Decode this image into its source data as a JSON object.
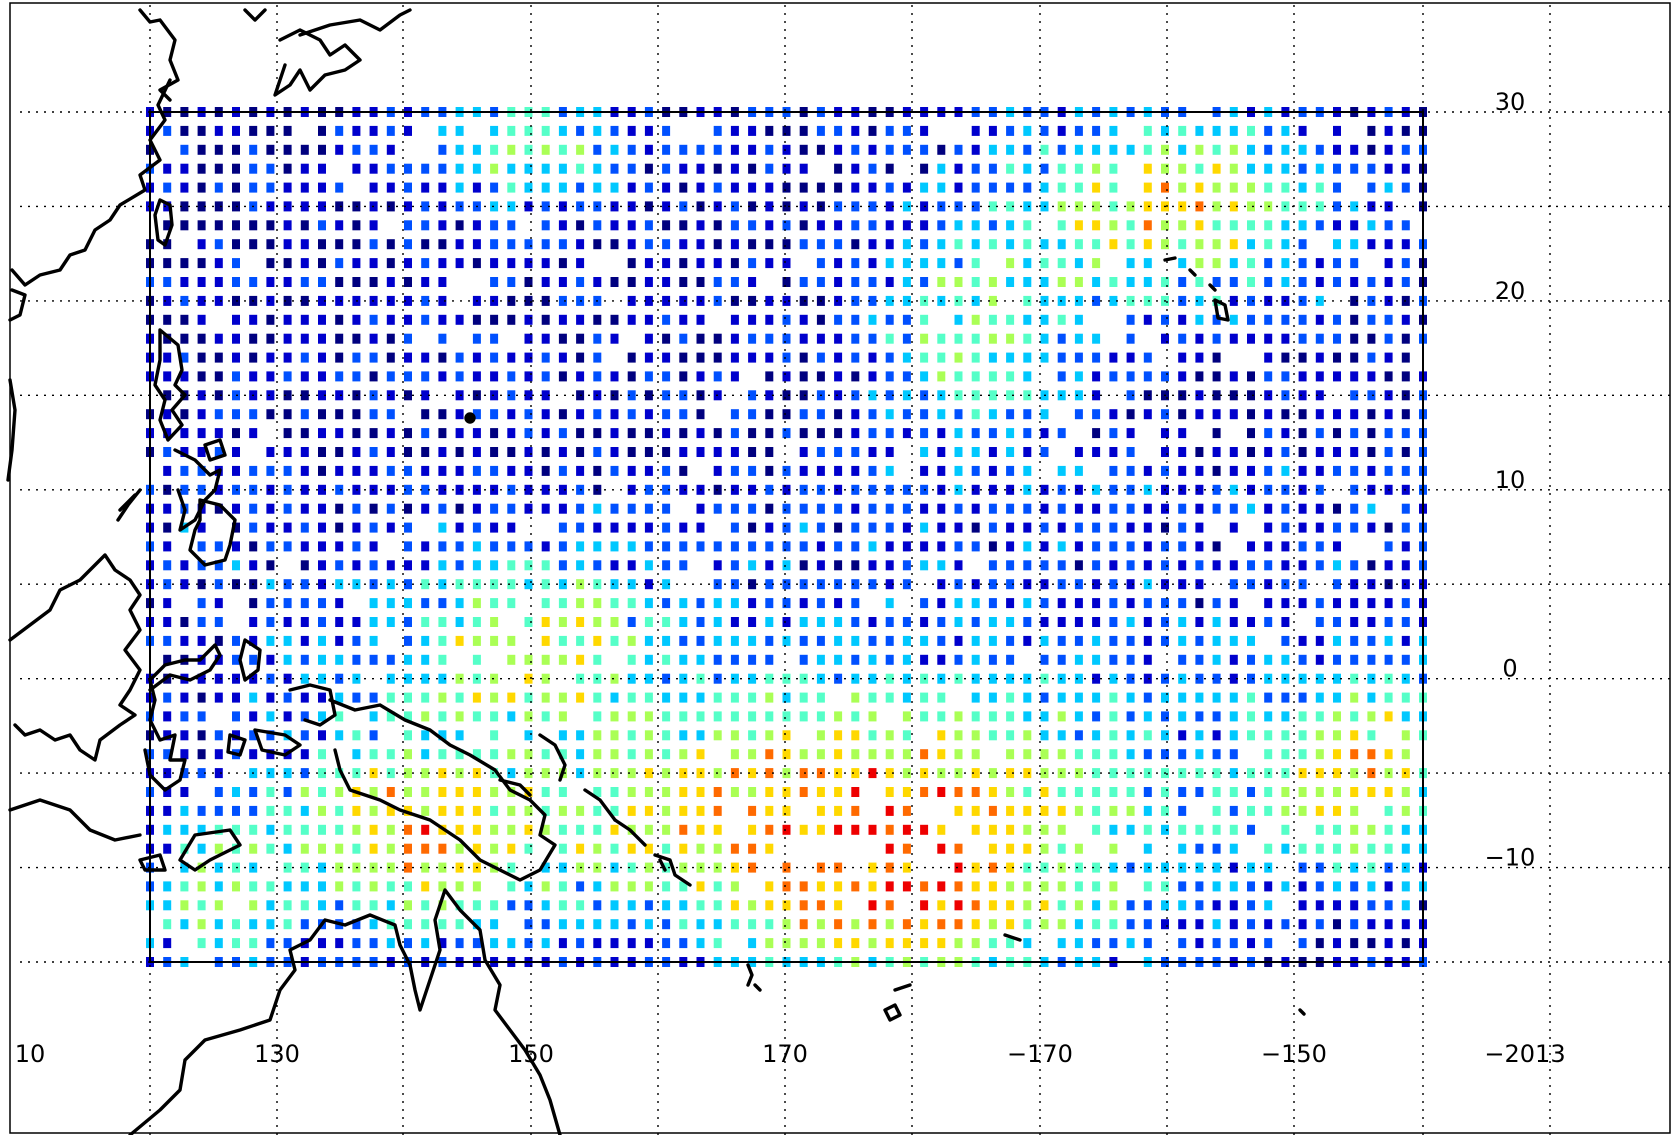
{
  "map": {
    "lon_ticks": [
      {
        "label": "10"
      },
      {
        "label": "130"
      },
      {
        "label": "150"
      },
      {
        "label": "170"
      },
      {
        "label": "−170"
      },
      {
        "label": "−150"
      },
      {
        "label": "−2013"
      }
    ],
    "lat_ticks": [
      {
        "label": "30"
      },
      {
        "label": "20"
      },
      {
        "label": "10"
      },
      {
        "label": "0"
      },
      {
        "label": "−10"
      }
    ],
    "grid": "dotted",
    "region": {
      "lon_west": 120,
      "lon_east": 220,
      "lat_south": -15,
      "lat_north": 30
    },
    "data_grid": {
      "cols": 75,
      "rows": 46
    },
    "colormap": [
      "#00007f",
      "#0000cd",
      "#0050ff",
      "#00c8ff",
      "#55ffc8",
      "#aaff55",
      "#ffd800",
      "#ff6a00",
      "#ee0000",
      "#7f0000"
    ],
    "coast_color": "#000000",
    "frame_color": "#000000"
  }
}
